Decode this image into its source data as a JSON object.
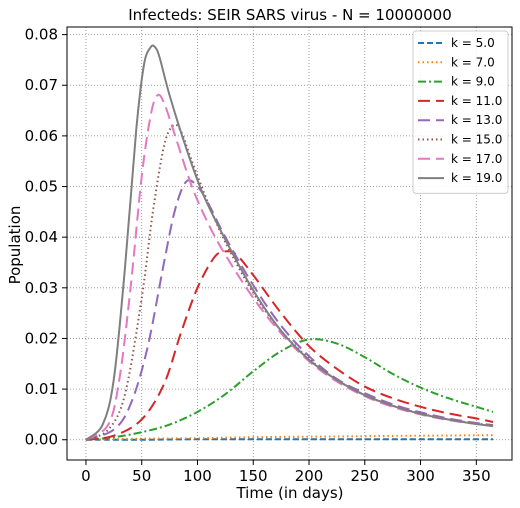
{
  "chart_data": {
    "type": "line",
    "title": "Infecteds: SEIR SARS virus -  N = 10000000",
    "xlabel": "Time (in days)",
    "ylabel": "Population",
    "xlim": [
      -17,
      382
    ],
    "ylim": [
      -0.004,
      0.0815
    ],
    "xticks": [
      0,
      50,
      100,
      150,
      200,
      250,
      300,
      350
    ],
    "xtick_labels": [
      "0",
      "50",
      "100",
      "150",
      "200",
      "250",
      "300",
      "350"
    ],
    "yticks": [
      0.0,
      0.01,
      0.02,
      0.03,
      0.04,
      0.05,
      0.06,
      0.07,
      0.08
    ],
    "ytick_labels": [
      "0.00",
      "0.01",
      "0.02",
      "0.03",
      "0.04",
      "0.05",
      "0.06",
      "0.07",
      "0.08"
    ],
    "grid": true,
    "legend_position": "top-right",
    "series": [
      {
        "name": "k = 5.0",
        "color": "#1f77b4",
        "dash": "dashed",
        "x": [
          0,
          50,
          100,
          150,
          200,
          250,
          300,
          365
        ],
        "y": [
          0,
          0.0,
          0.0001,
          0.0001,
          0.0001,
          0.0001,
          0.0001,
          0.0001
        ]
      },
      {
        "name": "k = 7.0",
        "color": "#ff7f0e",
        "dash": "dotted",
        "x": [
          0,
          50,
          100,
          150,
          200,
          250,
          300,
          365
        ],
        "y": [
          0,
          0.0002,
          0.0003,
          0.0005,
          0.0006,
          0.0007,
          0.0008,
          0.0009
        ]
      },
      {
        "name": "k = 9.0",
        "color": "#2ca02c",
        "dash": "dashdot",
        "x": [
          0,
          25,
          50,
          75,
          100,
          125,
          150,
          175,
          200,
          225,
          250,
          275,
          300,
          325,
          350,
          365
        ],
        "y": [
          0,
          0.0005,
          0.0015,
          0.003,
          0.0055,
          0.009,
          0.0135,
          0.0175,
          0.0198,
          0.019,
          0.0163,
          0.013,
          0.0103,
          0.0082,
          0.0065,
          0.0055
        ]
      },
      {
        "name": "k = 11.0",
        "color": "#d62728",
        "dash": "longdash",
        "x": [
          0,
          25,
          50,
          70,
          85,
          100,
          115,
          125,
          135,
          150,
          175,
          200,
          225,
          250,
          275,
          300,
          325,
          350,
          365
        ],
        "y": [
          0,
          0.0008,
          0.004,
          0.011,
          0.021,
          0.03,
          0.036,
          0.0372,
          0.0365,
          0.0325,
          0.025,
          0.0185,
          0.014,
          0.0105,
          0.0082,
          0.0065,
          0.0052,
          0.0042,
          0.0035
        ]
      },
      {
        "name": "k = 13.0",
        "color": "#9467bd",
        "dash": "longdash",
        "x": [
          0,
          25,
          40,
          55,
          70,
          80,
          90,
          100,
          110,
          125,
          150,
          175,
          200,
          225,
          250,
          275,
          300,
          325,
          350,
          365
        ],
        "y": [
          0,
          0.002,
          0.007,
          0.018,
          0.035,
          0.0455,
          0.051,
          0.05,
          0.0465,
          0.04,
          0.0305,
          0.0225,
          0.0165,
          0.012,
          0.0092,
          0.007,
          0.0054,
          0.0042,
          0.0033,
          0.0029
        ]
      },
      {
        "name": "k = 15.0",
        "color": "#8c564b",
        "dash": "dotted",
        "x": [
          0,
          20,
          35,
          50,
          60,
          70,
          78,
          85,
          95,
          110,
          125,
          150,
          175,
          200,
          225,
          250,
          275,
          300,
          325,
          350,
          365
        ],
        "y": [
          0,
          0.002,
          0.009,
          0.028,
          0.045,
          0.058,
          0.062,
          0.061,
          0.055,
          0.0465,
          0.039,
          0.029,
          0.0215,
          0.016,
          0.0118,
          0.0088,
          0.0067,
          0.0052,
          0.004,
          0.0032,
          0.0028
        ]
      },
      {
        "name": "k = 17.0",
        "color": "#e377c2",
        "dash": "longdash",
        "x": [
          0,
          20,
          30,
          40,
          50,
          58,
          64,
          70,
          80,
          95,
          110,
          125,
          150,
          175,
          200,
          225,
          250,
          275,
          300,
          325,
          350,
          365
        ],
        "y": [
          0,
          0.003,
          0.012,
          0.03,
          0.052,
          0.064,
          0.068,
          0.0665,
          0.06,
          0.05,
          0.0425,
          0.0365,
          0.028,
          0.021,
          0.0155,
          0.0115,
          0.0086,
          0.0065,
          0.005,
          0.0039,
          0.0031,
          0.0027
        ]
      },
      {
        "name": "k = 19.0",
        "color": "#7f7f7f",
        "dash": "solid",
        "x": [
          0,
          15,
          25,
          35,
          45,
          52,
          58,
          62,
          66,
          75,
          90,
          105,
          125,
          150,
          175,
          200,
          225,
          250,
          275,
          300,
          325,
          350,
          365
        ],
        "y": [
          0,
          0.003,
          0.012,
          0.034,
          0.061,
          0.074,
          0.0775,
          0.0775,
          0.0755,
          0.068,
          0.0575,
          0.0485,
          0.0395,
          0.0295,
          0.0215,
          0.0158,
          0.0118,
          0.0088,
          0.0067,
          0.0051,
          0.004,
          0.0031,
          0.0027
        ]
      }
    ]
  }
}
